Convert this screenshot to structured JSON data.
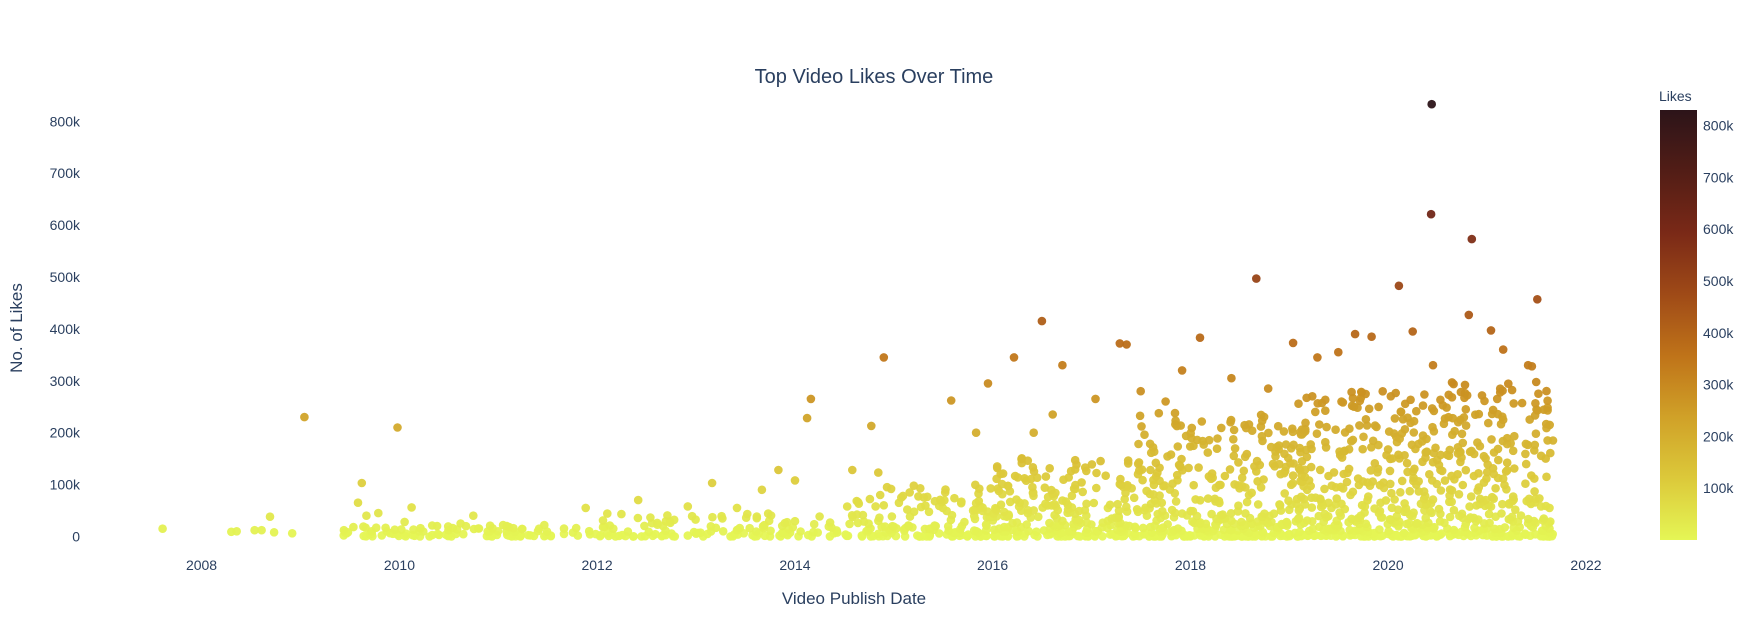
{
  "chart_data": {
    "type": "scatter",
    "title": "Top Video Likes Over Time",
    "xlabel": "Video Publish Date",
    "ylabel": "No. of Likes",
    "x_axis_type": "date",
    "xlim": [
      "2006-11-15",
      "2022-07-01"
    ],
    "ylim": [
      -55000,
      870000
    ],
    "x_ticks": [
      "2008",
      "2010",
      "2012",
      "2014",
      "2016",
      "2018",
      "2020",
      "2022"
    ],
    "y_ticks": [
      {
        "value": 0,
        "label": "0"
      },
      {
        "value": 100000,
        "label": "100k"
      },
      {
        "value": 200000,
        "label": "200k"
      },
      {
        "value": 300000,
        "label": "300k"
      },
      {
        "value": 400000,
        "label": "400k"
      },
      {
        "value": 500000,
        "label": "500k"
      },
      {
        "value": 600000,
        "label": "600k"
      },
      {
        "value": 700000,
        "label": "700k"
      },
      {
        "value": 800000,
        "label": "800k"
      }
    ],
    "grid": false,
    "legend": "none",
    "colorbar": {
      "title": "Likes",
      "range": [
        0,
        830000
      ],
      "ticks": [
        {
          "value": 100000,
          "label": "100k"
        },
        {
          "value": 200000,
          "label": "200k"
        },
        {
          "value": 300000,
          "label": "300k"
        },
        {
          "value": 400000,
          "label": "400k"
        },
        {
          "value": 500000,
          "label": "500k"
        },
        {
          "value": 600000,
          "label": "600k"
        },
        {
          "value": 700000,
          "label": "700k"
        },
        {
          "value": 800000,
          "label": "800k"
        }
      ],
      "colorscale": [
        "#e5f655",
        "#dcc93a",
        "#d0a128",
        "#bf7319",
        "#9f4a17",
        "#7a2917",
        "#521d16",
        "#2c1419"
      ]
    },
    "points": [
      {
        "x": "2007-08-10",
        "y": 15000
      },
      {
        "x": "2008-04-20",
        "y": 9000
      },
      {
        "x": "2008-05-10",
        "y": 10000
      },
      {
        "x": "2008-07-15",
        "y": 12000
      },
      {
        "x": "2008-08-10",
        "y": 12000
      },
      {
        "x": "2008-09-10",
        "y": 38000
      },
      {
        "x": "2008-09-25",
        "y": 8000
      },
      {
        "x": "2008-12-01",
        "y": 6000
      },
      {
        "x": "2009-01-15",
        "y": 230000
      },
      {
        "x": "2009-06-10",
        "y": 12000
      },
      {
        "x": "2009-06-25",
        "y": 8000
      },
      {
        "x": "2009-07-15",
        "y": 18000
      },
      {
        "x": "2009-08-01",
        "y": 65000
      },
      {
        "x": "2009-08-15",
        "y": 103000
      },
      {
        "x": "2009-09-01",
        "y": 40000
      },
      {
        "x": "2009-09-20",
        "y": 10000
      },
      {
        "x": "2009-10-15",
        "y": 45000
      },
      {
        "x": "2009-11-15",
        "y": 10000
      },
      {
        "x": "2009-12-25",
        "y": 210000
      },
      {
        "x": "2010-01-20",
        "y": 28000
      },
      {
        "x": "2010-02-15",
        "y": 56000
      },
      {
        "x": "2010-03-15",
        "y": 10000
      },
      {
        "x": "2010-05-20",
        "y": 20000
      },
      {
        "x": "2010-07-01",
        "y": 12000
      },
      {
        "x": "2010-08-15",
        "y": 25000
      },
      {
        "x": "2010-10-01",
        "y": 40000
      },
      {
        "x": "2010-12-01",
        "y": 10000
      },
      {
        "x": "2011-02-01",
        "y": 20000
      },
      {
        "x": "2011-06-01",
        "y": 15000
      },
      {
        "x": "2011-09-01",
        "y": 5000
      },
      {
        "x": "2011-11-20",
        "y": 55000
      },
      {
        "x": "2012-03-01",
        "y": 15000
      },
      {
        "x": "2012-06-01",
        "y": 70000
      },
      {
        "x": "2012-09-01",
        "y": 20000
      },
      {
        "x": "2012-12-01",
        "y": 58000
      },
      {
        "x": "2013-03-01",
        "y": 103000
      },
      {
        "x": "2013-06-01",
        "y": 55000
      },
      {
        "x": "2013-09-01",
        "y": 90000
      },
      {
        "x": "2013-11-01",
        "y": 128000
      },
      {
        "x": "2014-01-01",
        "y": 108000
      },
      {
        "x": "2014-02-15",
        "y": 228000
      },
      {
        "x": "2014-03-01",
        "y": 265000
      },
      {
        "x": "2014-08-01",
        "y": 128000
      },
      {
        "x": "2014-10-10",
        "y": 213000
      },
      {
        "x": "2014-11-05",
        "y": 123000
      },
      {
        "x": "2014-11-25",
        "y": 345000
      },
      {
        "x": "2015-03-01",
        "y": 85000
      },
      {
        "x": "2015-08-01",
        "y": 262000
      },
      {
        "x": "2015-11-01",
        "y": 200000
      },
      {
        "x": "2015-12-15",
        "y": 295000
      },
      {
        "x": "2016-03-20",
        "y": 345000
      },
      {
        "x": "2016-06-01",
        "y": 200000
      },
      {
        "x": "2016-07-01",
        "y": 415000
      },
      {
        "x": "2016-09-15",
        "y": 330000
      },
      {
        "x": "2016-08-10",
        "y": 235000
      },
      {
        "x": "2017-01-15",
        "y": 265000
      },
      {
        "x": "2017-04-15",
        "y": 372000
      },
      {
        "x": "2017-05-10",
        "y": 370000
      },
      {
        "x": "2017-07-01",
        "y": 280000
      },
      {
        "x": "2017-10-01",
        "y": 260000
      },
      {
        "x": "2017-12-01",
        "y": 320000
      },
      {
        "x": "2018-02-05",
        "y": 383000
      },
      {
        "x": "2018-06-01",
        "y": 305000
      },
      {
        "x": "2018-09-01",
        "y": 497000
      },
      {
        "x": "2018-10-15",
        "y": 285000
      },
      {
        "x": "2019-01-15",
        "y": 373000
      },
      {
        "x": "2019-04-15",
        "y": 345000
      },
      {
        "x": "2019-07-01",
        "y": 355000
      },
      {
        "x": "2019-09-01",
        "y": 390000
      },
      {
        "x": "2019-11-01",
        "y": 385000
      },
      {
        "x": "2020-02-10",
        "y": 483000
      },
      {
        "x": "2020-04-01",
        "y": 395000
      },
      {
        "x": "2020-06-10",
        "y": 833000
      },
      {
        "x": "2020-06-08",
        "y": 621000
      },
      {
        "x": "2020-06-15",
        "y": 330000
      },
      {
        "x": "2020-10-25",
        "y": 427000
      },
      {
        "x": "2020-11-05",
        "y": 573000
      },
      {
        "x": "2021-01-15",
        "y": 397000
      },
      {
        "x": "2021-03-01",
        "y": 360000
      },
      {
        "x": "2021-06-01",
        "y": 330000
      },
      {
        "x": "2021-06-15",
        "y": 328000
      },
      {
        "x": "2021-07-05",
        "y": 457000
      },
      {
        "x": "2021-08-20",
        "y": 215000
      },
      {
        "x": "2021-09-01",
        "y": 185000
      }
    ],
    "bulk_points": [
      {
        "x_range": [
          "2009-06-01",
          "2012-01-01"
        ],
        "y_range": [
          0,
          22000
        ],
        "count": 90
      },
      {
        "x_range": [
          "2012-01-01",
          "2014-06-01"
        ],
        "y_range": [
          0,
          45000
        ],
        "count": 110
      },
      {
        "x_range": [
          "2014-06-01",
          "2016-01-01"
        ],
        "y_range": [
          0,
          100000
        ],
        "count": 150
      },
      {
        "x_range": [
          "2016-01-01",
          "2017-06-01"
        ],
        "y_range": [
          0,
          160000
        ],
        "count": 240
      },
      {
        "x_range": [
          "2017-06-01",
          "2019-01-01"
        ],
        "y_range": [
          0,
          240000
        ],
        "count": 330
      },
      {
        "x_range": [
          "2019-01-01",
          "2020-06-01"
        ],
        "y_range": [
          0,
          280000
        ],
        "count": 360
      },
      {
        "x_range": [
          "2020-06-01",
          "2021-09-01"
        ],
        "y_range": [
          0,
          300000
        ],
        "count": 300
      }
    ]
  }
}
